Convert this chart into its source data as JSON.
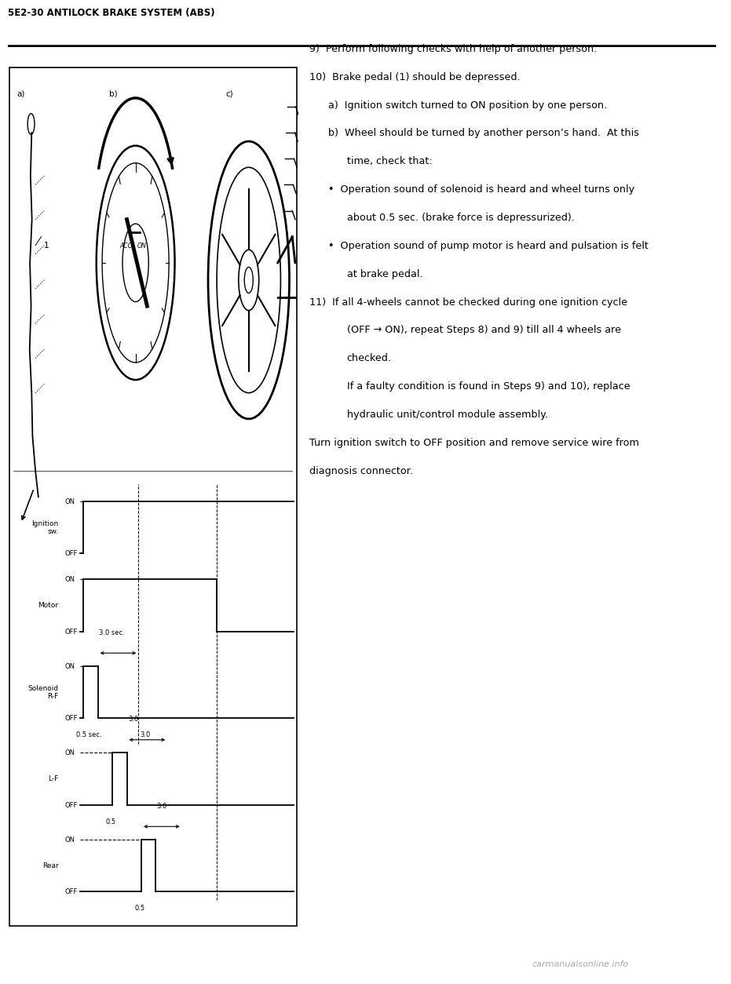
{
  "header_text": "5E2-30 ANTILOCK BRAKE SYSTEM (ABS)",
  "bg_color": "#ffffff",
  "right_text_lines": [
    {
      "indent": 0,
      "text": "9)  Perform following checks with help of another person."
    },
    {
      "indent": 0,
      "text": "10)  Brake pedal (1) should be depressed."
    },
    {
      "indent": 1,
      "text": "a)  Ignition switch turned to ON position by one person."
    },
    {
      "indent": 1,
      "text": "b)  Wheel should be turned by another person’s hand.  At this"
    },
    {
      "indent": 2,
      "text": "time, check that:"
    },
    {
      "indent": 1,
      "text": "•  Operation sound of solenoid is heard and wheel turns only"
    },
    {
      "indent": 2,
      "text": "about 0.5 sec. (brake force is depressurized)."
    },
    {
      "indent": 1,
      "text": "•  Operation sound of pump motor is heard and pulsation is felt"
    },
    {
      "indent": 2,
      "text": "at brake pedal."
    },
    {
      "indent": 0,
      "text": "11)  If all 4-wheels cannot be checked during one ignition cycle"
    },
    {
      "indent": 2,
      "text": "(OFF → ON), repeat Steps 8) and 9) till all 4 wheels are"
    },
    {
      "indent": 2,
      "text": "checked."
    },
    {
      "indent": 2,
      "text": "If a faulty condition is found in Steps 9) and 10), replace"
    },
    {
      "indent": 2,
      "text": "hydraulic unit/control module assembly."
    },
    {
      "indent": 0,
      "text": "Turn ignition switch to OFF position and remove service wire from"
    },
    {
      "indent": 0,
      "text": "diagnosis connector."
    }
  ],
  "watermark": "carmanualsonline.info"
}
